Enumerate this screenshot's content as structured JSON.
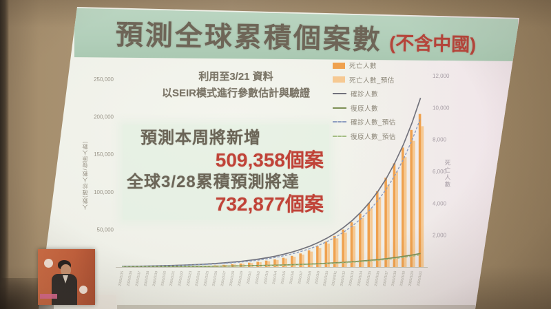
{
  "slide": {
    "title": "預測全球累積個案數",
    "title_suffix": "(不含中國)",
    "note_line1": "利用至3/21 資料",
    "note_line2": "以SEIR模式進行參數估計與驗證",
    "highlight": {
      "line1": "預測本周將新增",
      "line2": "509,358個案",
      "line3": "全球3/28累積預測將達",
      "line4": "732,877個案"
    }
  },
  "chart_data": {
    "type": "bar",
    "subtype": "combo-bar-line-dual-axis",
    "title": "預測全球累積個案數 (不含中國)",
    "legend_position": "top-right",
    "grid": false,
    "x": [
      "2020/2/15",
      "2020/2/16",
      "2020/2/17",
      "2020/2/18",
      "2020/2/19",
      "2020/2/20",
      "2020/2/21",
      "2020/2/22",
      "2020/2/23",
      "2020/2/24",
      "2020/2/25",
      "2020/2/26",
      "2020/2/27",
      "2020/2/28",
      "2020/2/29",
      "2020/3/1",
      "2020/3/2",
      "2020/3/3",
      "2020/3/4",
      "2020/3/5",
      "2020/3/6",
      "2020/3/7",
      "2020/3/8",
      "2020/3/9",
      "2020/3/10",
      "2020/3/11",
      "2020/3/12",
      "2020/3/13",
      "2020/3/14",
      "2020/3/15",
      "2020/3/16",
      "2020/3/17",
      "2020/3/18",
      "2020/3/19",
      "2020/3/20",
      "2020/3/21"
    ],
    "y_left": {
      "label": "人數(確診人數/復原人數)",
      "max": 250000,
      "min": 0,
      "tick_labels": [
        "250,000",
        "200,000",
        "150,000",
        "100,000",
        "50,000"
      ]
    },
    "y_right": {
      "label": "死亡人數",
      "max": 12000,
      "min": 0,
      "tick_labels": [
        "12,000",
        "10,000",
        "8,000",
        "6,000",
        "4,000",
        "2,000"
      ]
    },
    "series": [
      {
        "name": "死亡人數",
        "type": "bar",
        "axis": "right",
        "color": "#efa14e",
        "values": [
          10,
          12,
          15,
          18,
          21,
          26,
          32,
          40,
          50,
          65,
          85,
          110,
          140,
          175,
          220,
          270,
          330,
          400,
          480,
          580,
          700,
          850,
          1050,
          1300,
          1600,
          1950,
          2350,
          2800,
          3350,
          4000,
          4750,
          5600,
          6500,
          7500,
          8600,
          9600
        ]
      },
      {
        "name": "死亡人數_預估",
        "type": "bar",
        "axis": "right",
        "color": "#f6c992",
        "values": [
          9,
          11,
          14,
          17,
          20,
          24,
          30,
          37,
          46,
          60,
          78,
          101,
          129,
          161,
          202,
          248,
          304,
          368,
          442,
          534,
          644,
          782,
          966,
          1196,
          1472,
          1794,
          2162,
          2576,
          3082,
          3680,
          4370,
          5152,
          5980,
          6900,
          7912,
          8832
        ]
      },
      {
        "name": "確診人數",
        "type": "line",
        "axis": "left",
        "color": "#72727c",
        "dash": false,
        "values": [
          800,
          940,
          1100,
          1300,
          1520,
          1790,
          2100,
          2470,
          2900,
          3400,
          4000,
          4700,
          5520,
          6490,
          7620,
          8960,
          10500,
          12400,
          14500,
          17100,
          20100,
          23600,
          27700,
          32500,
          38200,
          44900,
          52800,
          62000,
          72900,
          85600,
          100600,
          118200,
          138900,
          163200,
          191800,
          225000
        ]
      },
      {
        "name": "復原人數",
        "type": "line",
        "axis": "left",
        "color": "#7e9055",
        "dash": false,
        "values": [
          300,
          340,
          380,
          430,
          480,
          540,
          600,
          680,
          760,
          860,
          960,
          1080,
          1220,
          1370,
          1540,
          1730,
          1940,
          2180,
          2450,
          2760,
          3100,
          3480,
          3910,
          4400,
          4940,
          5560,
          6240,
          7020,
          7890,
          8870,
          9970,
          11200,
          12600,
          14200,
          15900,
          18000
        ]
      },
      {
        "name": "確診人數_預估",
        "type": "line",
        "axis": "left",
        "color": "#8c9cc0",
        "dash": true,
        "values": [
          700,
          830,
          970,
          1140,
          1340,
          1580,
          1850,
          2170,
          2550,
          2990,
          3520,
          4140,
          4860,
          5710,
          6710,
          7880,
          9240,
          10900,
          12800,
          15000,
          17700,
          20800,
          24400,
          28600,
          33600,
          39500,
          46500,
          54600,
          64200,
          75300,
          88500,
          104000,
          122200,
          143600,
          168800,
          198000
        ]
      },
      {
        "name": "復原人數_預估",
        "type": "line",
        "axis": "left",
        "color": "#a3bd83",
        "dash": true,
        "values": [
          270,
          306,
          342,
          387,
          432,
          486,
          540,
          612,
          684,
          774,
          864,
          972,
          1098,
          1233,
          1386,
          1557,
          1746,
          1962,
          2205,
          2484,
          2790,
          3132,
          3519,
          3960,
          4446,
          5004,
          5616,
          6318,
          7101,
          7983,
          8973,
          10080,
          11340,
          12780,
          14310,
          16200
        ]
      }
    ]
  },
  "overlay_video": {
    "background_color": "#c2603e",
    "caption_color": "#d9688f"
  }
}
